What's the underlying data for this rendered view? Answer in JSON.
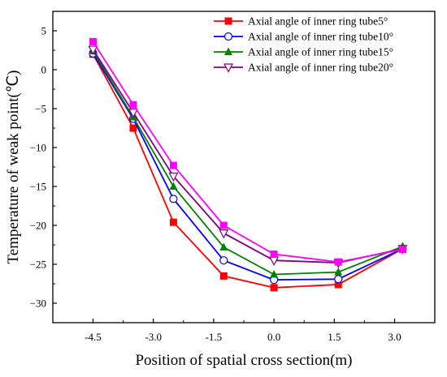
{
  "chart_data": {
    "type": "line",
    "xlabel": "Position of spatial cross section(m)",
    "ylabel": "Temperature of weak point(℃)",
    "x": [
      -4.5,
      -3.5,
      -2.5,
      -1.25,
      0.0,
      1.6,
      3.2
    ],
    "xticks": [
      -4.5,
      -3.0,
      -1.5,
      0.0,
      1.5,
      3.0
    ],
    "xtick_labels": [
      "-4.5",
      "-3.0",
      "-1.5",
      "0.0",
      "1.5",
      "3.0"
    ],
    "yticks": [
      5,
      0,
      -5,
      -10,
      -15,
      -20,
      -25,
      -30
    ],
    "ytick_labels": [
      "5",
      "0",
      "−5",
      "−10",
      "−15",
      "−20",
      "−25",
      "−30"
    ],
    "xlim": [
      -5.5,
      4.0
    ],
    "ylim": [
      -32.5,
      7.5
    ],
    "grid": false,
    "legend_position": "top-right",
    "series": [
      {
        "name": "Axial angle of inner ring tube5°",
        "color": "#ff0000",
        "marker": "square-filled",
        "values": [
          2.0,
          -7.5,
          -19.6,
          -26.5,
          -28.0,
          -27.6,
          -23.0
        ]
      },
      {
        "name": "Axial angle of inner ring tube10°",
        "color": "#0000ff",
        "marker": "circle-open",
        "values": [
          2.1,
          -6.3,
          -16.6,
          -24.5,
          -27.0,
          -26.9,
          -23.0
        ]
      },
      {
        "name": "Axial angle of inner ring tube15°",
        "color": "#008000",
        "marker": "triangle-filled",
        "values": [
          2.4,
          -6.1,
          -15.0,
          -22.8,
          -26.3,
          -26.0,
          -22.7
        ]
      },
      {
        "name": "Axial angle of inner ring tube20°",
        "color": "#800080",
        "marker": "triangle-down-open",
        "values": [
          2.6,
          -5.5,
          -13.7,
          -21.0,
          -24.5,
          -24.8,
          -23.0
        ]
      },
      {
        "name": "",
        "color": "#ff00ff",
        "marker": "square-filled",
        "values": [
          3.6,
          -4.5,
          -12.3,
          -20.0,
          -23.7,
          -24.7,
          -23.1
        ]
      }
    ]
  }
}
